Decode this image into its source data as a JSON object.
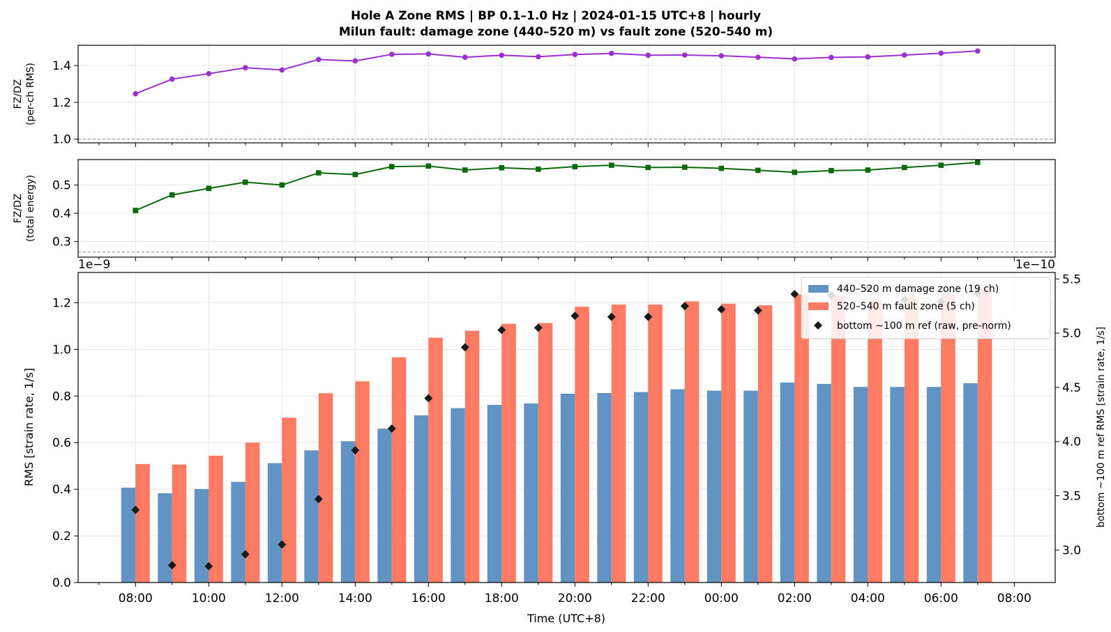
{
  "title": {
    "line1": "Hole A Zone RMS  |  BP 0.1–1.0 Hz  |  2024-01-15 UTC+8  |  hourly",
    "line2": "Milun fault: damage zone (440–520 m) vs fault zone (520–540 m)"
  },
  "colors": {
    "ratio_rms": "#9b30d0",
    "ratio_energy": "#0a6a0a",
    "damage_zone": "#6194c2",
    "fault_zone": "#fe7a62",
    "ref": "#1a1a1a",
    "refline": "#888888",
    "grid": "#e6e6e6"
  },
  "chart_data": [
    {
      "type": "line",
      "id": "ratio_rms",
      "ylabel": [
        "FZ/DZ",
        "(per-ch RMS)"
      ],
      "ylim": [
        0.98,
        1.51
      ],
      "yticks": [
        "1.0",
        "1.2",
        "1.4"
      ],
      "reference_line": 1.0,
      "marker": "circle",
      "x_hours": [
        0,
        1,
        2,
        3,
        4,
        5,
        6,
        7,
        8,
        9,
        10,
        11,
        12,
        13,
        14,
        15,
        16,
        17,
        18,
        19,
        20,
        21,
        22,
        23
      ],
      "values": [
        1.247,
        1.326,
        1.356,
        1.388,
        1.376,
        1.433,
        1.425,
        1.461,
        1.463,
        1.445,
        1.456,
        1.448,
        1.46,
        1.466,
        1.456,
        1.457,
        1.453,
        1.445,
        1.436,
        1.444,
        1.447,
        1.457,
        1.467,
        1.479
      ],
      "grid": true
    },
    {
      "type": "line",
      "id": "ratio_energy",
      "ylabel": [
        "FZ/DZ",
        "(total energy)"
      ],
      "ylim": [
        0.245,
        0.59
      ],
      "yticks": [
        "0.3",
        "0.4",
        "0.5"
      ],
      "reference_line": 0.263,
      "marker": "square",
      "x_hours": [
        0,
        1,
        2,
        3,
        4,
        5,
        6,
        7,
        8,
        9,
        10,
        11,
        12,
        13,
        14,
        15,
        16,
        17,
        18,
        19,
        20,
        21,
        22,
        23
      ],
      "values": [
        0.41,
        0.465,
        0.488,
        0.51,
        0.5,
        0.543,
        0.537,
        0.565,
        0.567,
        0.553,
        0.561,
        0.556,
        0.565,
        0.57,
        0.562,
        0.563,
        0.559,
        0.552,
        0.545,
        0.551,
        0.553,
        0.562,
        0.57,
        0.58
      ],
      "offset_labels": [
        "1e−9",
        "1e−10"
      ],
      "grid": true
    },
    {
      "type": "bar",
      "id": "zone_rms",
      "ylabel": "RMS  [strain rate, 1/s]",
      "xlabel": "Time (UTC+8)",
      "ylim": [
        0.0,
        1.33
      ],
      "yticks": [
        "0.0",
        "0.2",
        "0.4",
        "0.6",
        "0.8",
        "1.0",
        "1.2"
      ],
      "y2label": "bottom ~100 m ref RMS  [strain rate, 1/s]",
      "y2lim": [
        2.7,
        5.56
      ],
      "y2ticks": [
        "3.0",
        "3.5",
        "4.0",
        "4.5",
        "5.0",
        "5.5"
      ],
      "xticklabels": [
        "08:00",
        "10:00",
        "12:00",
        "14:00",
        "16:00",
        "18:00",
        "20:00",
        "22:00",
        "00:00",
        "02:00",
        "04:00",
        "06:00",
        "08:00"
      ],
      "x_hours": [
        0,
        1,
        2,
        3,
        4,
        5,
        6,
        7,
        8,
        9,
        10,
        11,
        12,
        13,
        14,
        15,
        16,
        17,
        18,
        19,
        20,
        21,
        22,
        23
      ],
      "series": [
        {
          "name": "440–520 m  damage zone (19 ch)",
          "values": [
            0.407,
            0.383,
            0.401,
            0.432,
            0.512,
            0.567,
            0.606,
            0.66,
            0.717,
            0.748,
            0.762,
            0.768,
            0.81,
            0.813,
            0.817,
            0.829,
            0.823,
            0.823,
            0.858,
            0.852,
            0.839,
            0.839,
            0.839,
            0.855
          ]
        },
        {
          "name": "520–540 m  fault zone (5 ch)",
          "values": [
            0.508,
            0.506,
            0.544,
            0.6,
            0.707,
            0.812,
            0.863,
            0.966,
            1.05,
            1.08,
            1.11,
            1.113,
            1.183,
            1.192,
            1.192,
            1.206,
            1.196,
            1.189,
            1.235,
            1.23,
            1.215,
            1.225,
            1.235,
            1.263
          ]
        },
        {
          "name": "bottom ~100 m ref (raw, pre-norm)",
          "axis": "right",
          "values": [
            3.37,
            2.86,
            2.85,
            2.96,
            3.05,
            3.47,
            3.92,
            4.12,
            4.4,
            4.87,
            5.03,
            5.05,
            5.16,
            5.15,
            5.15,
            5.25,
            5.22,
            5.21,
            5.36,
            5.35,
            5.41,
            5.31,
            5.29,
            5.37
          ]
        }
      ],
      "legend": "top-right",
      "grid": true
    }
  ]
}
